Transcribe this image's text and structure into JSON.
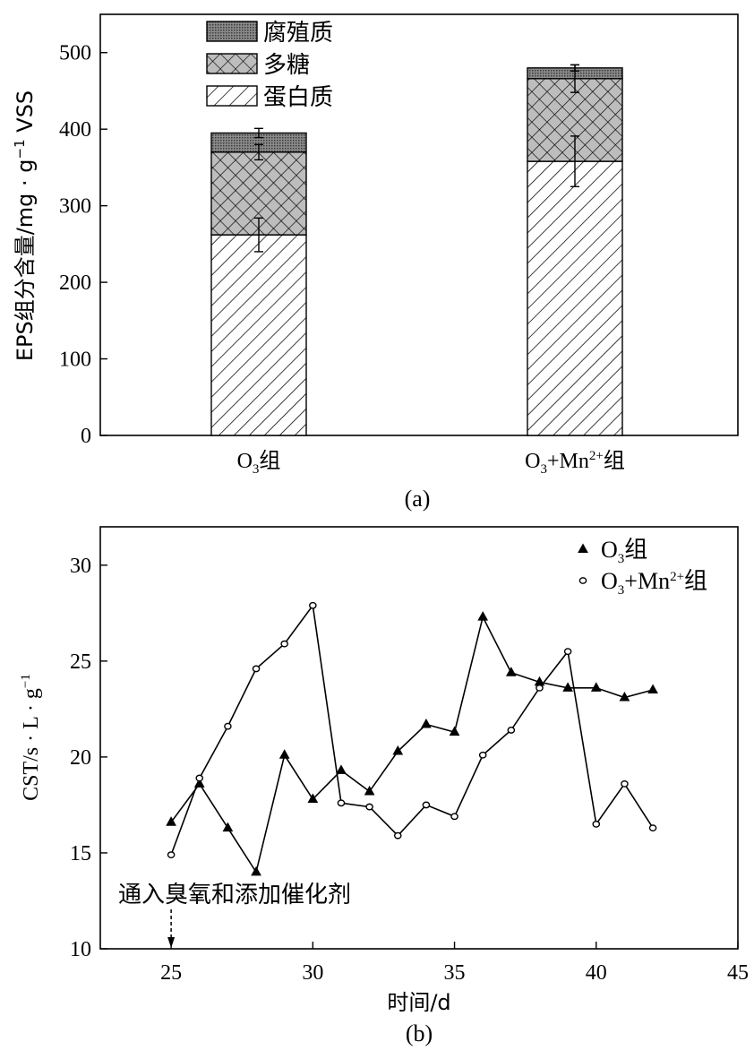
{
  "colors": {
    "ink": "#000000",
    "humic": "#6e6e6e",
    "poly_bg": "#bdbdbd",
    "paper": "#ffffff"
  },
  "chart_data": [
    {
      "type": "bar",
      "stacked": true,
      "caption": "(a)",
      "title": "",
      "xlabel": "",
      "ylabel": "EPS组分含量/mg·g⁻¹ VSS",
      "ylabel_main": "EPS组分含量/mg · g",
      "ylabel_sup": "−1",
      "ylabel_tail": " VSS",
      "ylim": [
        0,
        550
      ],
      "yticks": [
        0,
        100,
        200,
        300,
        400,
        500
      ],
      "categories": [
        {
          "name": "O3组",
          "main": "O",
          "sub": "3",
          "sup": "",
          "tail": "组"
        },
        {
          "name": "O3+Mn2+组",
          "main": "O",
          "sub": "3",
          "mid": "+Mn",
          "sup": "2+",
          "tail": "组"
        }
      ],
      "series": [
        {
          "name": "蛋白质",
          "pattern": "protein",
          "values": [
            262,
            358
          ],
          "error": [
            22,
            33
          ]
        },
        {
          "name": "多糖",
          "pattern": "polysaccharide",
          "values": [
            108,
            108
          ],
          "error": [
            10,
            18
          ]
        },
        {
          "name": "腐殖质",
          "pattern": "humic",
          "values": [
            25,
            14
          ],
          "error": [
            6,
            4
          ]
        }
      ],
      "legend_order": [
        "腐殖质",
        "多糖",
        "蛋白质"
      ],
      "legend_position": "top-left"
    },
    {
      "type": "line",
      "caption": "(b)",
      "title": "",
      "xlabel": "时间/d",
      "ylabel": "CST/s·L·g⁻¹",
      "ylabel_main": "CST/s · L · g",
      "ylabel_sup": "−1",
      "xlim": [
        22.5,
        45
      ],
      "ylim": [
        10,
        32
      ],
      "xticks": [
        25,
        30,
        35,
        40,
        45
      ],
      "yticks": [
        10,
        15,
        20,
        25,
        30
      ],
      "x": [
        25,
        26,
        27,
        28,
        29,
        30,
        31,
        32,
        33,
        34,
        35,
        36,
        37,
        38,
        39,
        40,
        41,
        42
      ],
      "series": [
        {
          "name": "O3组",
          "label_main": "O",
          "label_sub": "3",
          "label_tail": "组",
          "marker": "triangle",
          "values": [
            16.6,
            18.6,
            16.3,
            14.0,
            20.1,
            17.8,
            19.3,
            18.2,
            20.3,
            21.7,
            21.3,
            27.3,
            24.4,
            23.9,
            23.6,
            23.6,
            23.1,
            23.5
          ]
        },
        {
          "name": "O3+Mn2+组",
          "label_main": "O",
          "label_sub": "3",
          "label_mid": "+Mn",
          "label_sup": "2+",
          "label_tail": "组",
          "marker": "circle",
          "values": [
            14.9,
            18.9,
            21.6,
            24.6,
            25.9,
            27.9,
            17.6,
            17.4,
            15.9,
            17.5,
            16.9,
            20.1,
            21.4,
            23.6,
            25.5,
            16.5,
            18.6,
            16.3
          ]
        }
      ],
      "annotation": {
        "text": "通入臭氧和添加催化剂",
        "x": 25
      },
      "legend_position": "top-right"
    }
  ]
}
